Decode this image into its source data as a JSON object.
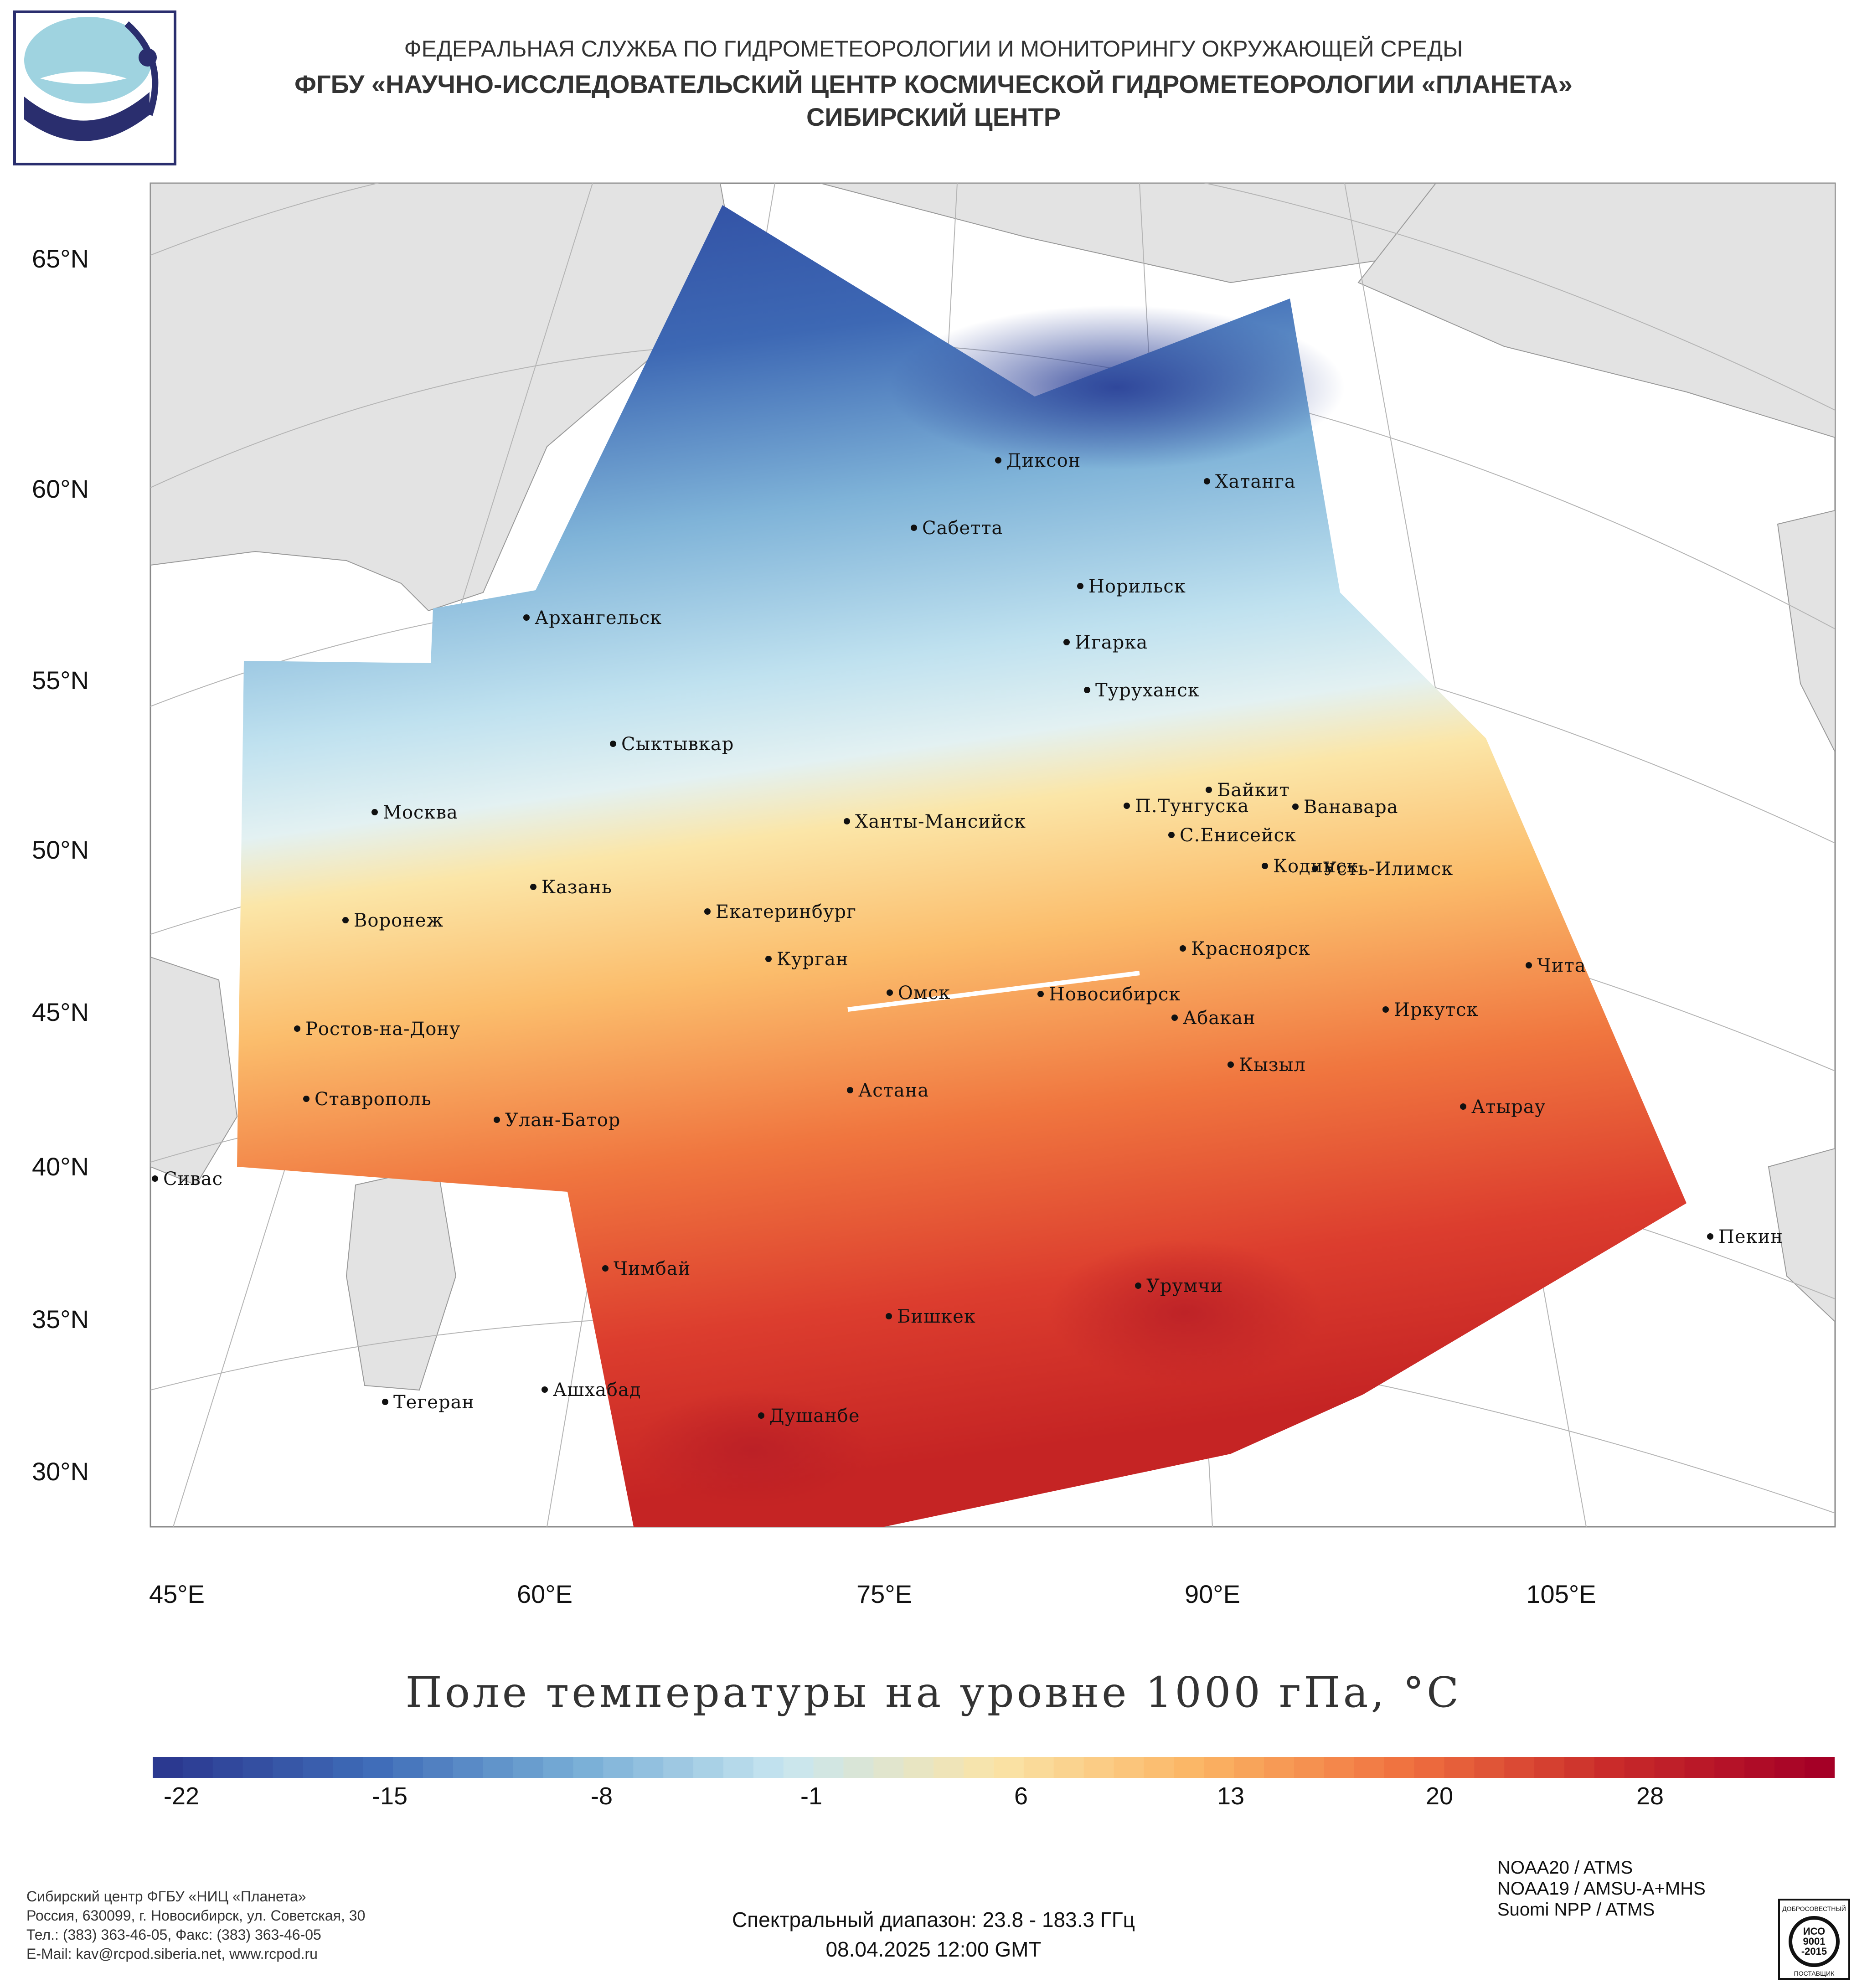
{
  "header": {
    "line1": "ФЕДЕРАЛЬНАЯ СЛУЖБА ПО ГИДРОМЕТЕОРОЛОГИИ И МОНИТОРИНГУ ОКРУЖАЮЩЕЙ СРЕДЫ",
    "line2": "ФГБУ «НАУЧНО-ИССЛЕДОВАТЕЛЬСКИЙ ЦЕНТР КОСМИЧЕСКОЙ ГИДРОМЕТЕОРОЛОГИИ «ПЛАНЕТА»",
    "line3": "СИБИРСКИЙ ЦЕНТР"
  },
  "map": {
    "latitude_labels": [
      "65°N",
      "60°N",
      "55°N",
      "50°N",
      "45°N",
      "40°N",
      "35°N",
      "30°N"
    ],
    "longitude_labels": [
      "45°E",
      "60°E",
      "75°E",
      "90°E",
      "105°E"
    ],
    "cities": [
      {
        "name": "Диксон"
      },
      {
        "name": "Хатанга"
      },
      {
        "name": "Сабетта"
      },
      {
        "name": "Норильск"
      },
      {
        "name": "Архангельск"
      },
      {
        "name": "Игарка"
      },
      {
        "name": "Туруханск"
      },
      {
        "name": "Сыктывкар"
      },
      {
        "name": "Байкит"
      },
      {
        "name": "Москва"
      },
      {
        "name": "Ханты-Мансийск"
      },
      {
        "name": "П.Тунгуска"
      },
      {
        "name": "Ванавара"
      },
      {
        "name": "С.Енисейск"
      },
      {
        "name": "Казань"
      },
      {
        "name": "Кодинск"
      },
      {
        "name": "Усть-Илимск"
      },
      {
        "name": "Екатеринбург"
      },
      {
        "name": "Воронеж"
      },
      {
        "name": "Красноярск"
      },
      {
        "name": "Курган"
      },
      {
        "name": "Чита"
      },
      {
        "name": "Омск"
      },
      {
        "name": "Новосибирск"
      },
      {
        "name": "Иркутск"
      },
      {
        "name": "Ростов-на-Дону"
      },
      {
        "name": "Абакан"
      },
      {
        "name": "Кызыл"
      },
      {
        "name": "Астана"
      },
      {
        "name": "Ставрополь"
      },
      {
        "name": "Улан-Батор"
      },
      {
        "name": "Атырау"
      },
      {
        "name": "Сивас"
      },
      {
        "name": "Пекин"
      },
      {
        "name": "Чимбай"
      },
      {
        "name": "Урумчи"
      },
      {
        "name": "Бишкек"
      },
      {
        "name": "Ашхабад"
      },
      {
        "name": "Тегеран"
      },
      {
        "name": "Душанбе"
      }
    ]
  },
  "title": "Поле температуры на уровне 1000 гПа, °C",
  "colorbar": {
    "ticks": [
      "-22",
      "-15",
      "-8",
      "-1",
      "6",
      "13",
      "20",
      "28"
    ],
    "colors": [
      "#2b3990",
      "#3f6cb8",
      "#78aed6",
      "#c8e6f0",
      "#fae4a8",
      "#fbb463",
      "#f0713f",
      "#c92a2a",
      "#a50026"
    ]
  },
  "footer": {
    "org_lines": [
      "Сибирский центр ФГБУ «НИЦ «Планета»",
      "Россия, 630099, г. Новосибирск, ул. Советская, 30",
      "Тел.: (383) 363-46-05, Факс: (383) 363-46-05",
      "E-Mail: kav@rcpod.siberia.net, www.rcpod.ru"
    ],
    "spectral": "Спектральный диапазон: 23.8 - 183.3 ГГц",
    "datetime": "08.04.2025 12:00 GMT",
    "satellites": [
      "NOAA20 / ATMS",
      "NOAA19 / AMSU-A+MHS",
      "Suomi NPP / ATMS"
    ]
  },
  "badge": {
    "top_text": "ДОБРОСОВЕСТНЫЙ",
    "line1": "ИСО",
    "line2": "9001",
    "line3": "-2015",
    "bottom_text": "ПОСТАВЩИК"
  }
}
